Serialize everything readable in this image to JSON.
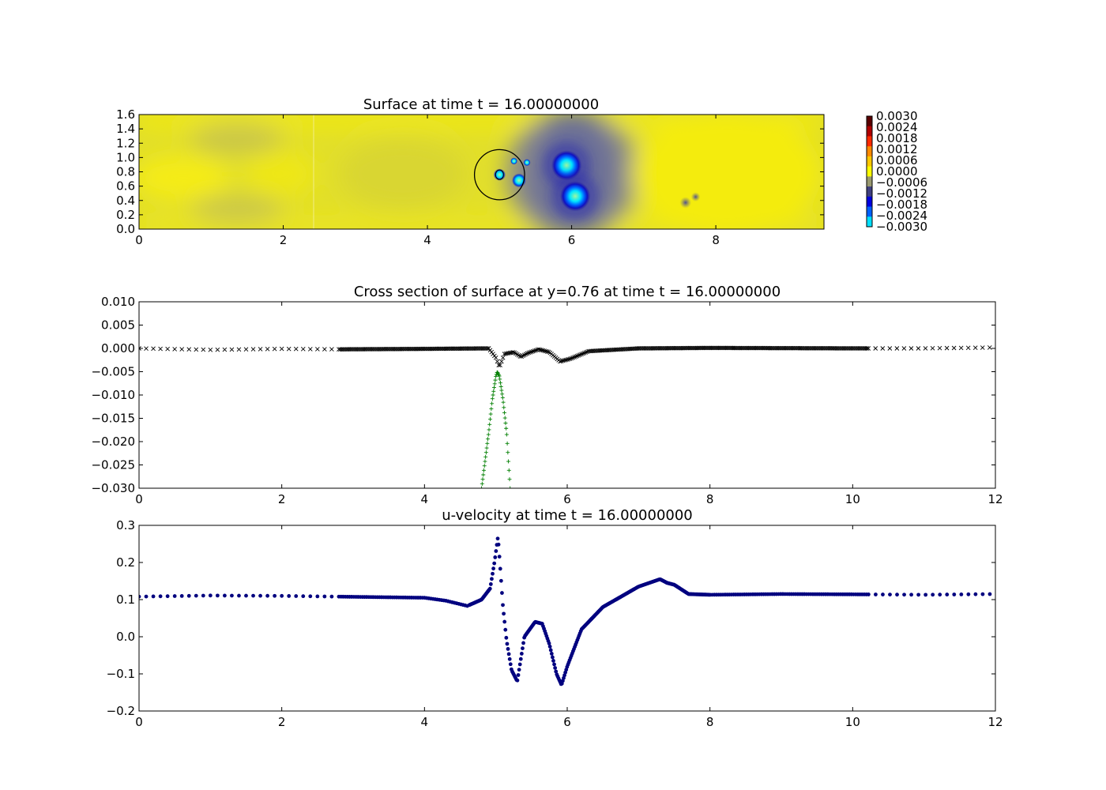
{
  "chart_data": [
    {
      "type": "heatmap",
      "title": "Surface at time t =    16.00000000",
      "xlim": [
        0,
        9.5
      ],
      "ylim": [
        0,
        1.6
      ],
      "xticks": [
        "0",
        "2",
        "4",
        "6",
        "8"
      ],
      "yticks": [
        "0.0",
        "0.2",
        "0.4",
        "0.6",
        "0.8",
        "1.0",
        "1.2",
        "1.4",
        "1.6"
      ],
      "colorbar": {
        "range": [
          -0.003,
          0.003
        ],
        "ticks": [
          "0.0030",
          "0.0024",
          "0.0018",
          "0.0012",
          "0.0006",
          "0.0000",
          "−0.0006",
          "−0.0012",
          "−0.0018",
          "−0.0024",
          "−0.0030"
        ],
        "colors": [
          "#5a0000",
          "#b00000",
          "#ff2a00",
          "#ff8a00",
          "#ffc800",
          "#ffff00",
          "#9a9a70",
          "#404080",
          "#0000e0",
          "#0060ff",
          "#00e0ff"
        ]
      },
      "features": {
        "circle": {
          "cx": 5.0,
          "cy": 0.76,
          "r": 0.35
        },
        "depressions": [
          {
            "x": 5.0,
            "y": 0.76,
            "r": 0.06
          },
          {
            "x": 5.27,
            "y": 0.68,
            "r": 0.07
          },
          {
            "x": 5.2,
            "y": 0.95,
            "r": 0.035
          },
          {
            "x": 5.38,
            "y": 0.93,
            "r": 0.035
          },
          {
            "x": 5.93,
            "y": 0.89,
            "r": 0.15
          },
          {
            "x": 6.05,
            "y": 0.46,
            "r": 0.15
          },
          {
            "x": 7.58,
            "y": 0.37,
            "r": 0.05
          },
          {
            "x": 7.72,
            "y": 0.45,
            "r": 0.04
          }
        ]
      }
    },
    {
      "type": "scatter",
      "title": "Cross section of surface at y=0.76 at time t =    16.00000000",
      "xlim": [
        0,
        12
      ],
      "ylim": [
        -0.03,
        0.01
      ],
      "xticks": [
        "0",
        "2",
        "4",
        "6",
        "8",
        "10",
        "12"
      ],
      "yticks": [
        "0.010",
        "0.005",
        "0.000",
        "−0.005",
        "−0.010",
        "−0.015",
        "−0.020",
        "−0.025",
        "−0.030"
      ],
      "series": [
        {
          "marker": "x",
          "color": "#000000",
          "points": [
            [
              0,
              0.0
            ],
            [
              1,
              -0.0003
            ],
            [
              2,
              -0.0001
            ],
            [
              2.8,
              -0.0002
            ],
            [
              4.0,
              -0.0001
            ],
            [
              4.9,
              0.0
            ],
            [
              5.0,
              -0.002
            ],
            [
              5.05,
              -0.004
            ],
            [
              5.12,
              -0.0012
            ],
            [
              5.25,
              -0.0008
            ],
            [
              5.35,
              -0.0018
            ],
            [
              5.45,
              -0.001
            ],
            [
              5.6,
              -0.0002
            ],
            [
              5.75,
              -0.0008
            ],
            [
              5.9,
              -0.0028
            ],
            [
              6.05,
              -0.0022
            ],
            [
              6.3,
              -0.0006
            ],
            [
              7.0,
              0.0
            ],
            [
              8.0,
              0.0001
            ],
            [
              10.2,
              0.0
            ],
            [
              11.0,
              0.0
            ],
            [
              12.0,
              0.0002
            ]
          ]
        },
        {
          "marker": "+",
          "color": "#007f00",
          "points": [
            [
              4.8,
              -0.03
            ],
            [
              4.9,
              -0.018
            ],
            [
              4.95,
              -0.011
            ],
            [
              5.0,
              -0.006
            ],
            [
              5.02,
              -0.005
            ],
            [
              5.05,
              -0.006
            ],
            [
              5.1,
              -0.011
            ],
            [
              5.15,
              -0.018
            ],
            [
              5.2,
              -0.03
            ]
          ]
        }
      ]
    },
    {
      "type": "scatter",
      "title": "u-velocity at time t =    16.00000000",
      "xlim": [
        0,
        12
      ],
      "ylim": [
        -0.2,
        0.3
      ],
      "xticks": [
        "0",
        "2",
        "4",
        "6",
        "8",
        "10",
        "12"
      ],
      "yticks": [
        "0.3",
        "0.2",
        "0.1",
        "0.0",
        "−0.1",
        "−0.2"
      ],
      "series": [
        {
          "marker": "o",
          "color": "#00007f",
          "points": [
            [
              0,
              0.108
            ],
            [
              1,
              0.111
            ],
            [
              2,
              0.11
            ],
            [
              2.8,
              0.108
            ],
            [
              4.0,
              0.105
            ],
            [
              4.3,
              0.097
            ],
            [
              4.6,
              0.083
            ],
            [
              4.8,
              0.1
            ],
            [
              4.92,
              0.13
            ],
            [
              4.98,
              0.2
            ],
            [
              5.03,
              0.27
            ],
            [
              5.1,
              0.08
            ],
            [
              5.15,
              -0.01
            ],
            [
              5.22,
              -0.09
            ],
            [
              5.3,
              -0.12
            ],
            [
              5.4,
              0.0
            ],
            [
              5.55,
              0.04
            ],
            [
              5.65,
              0.035
            ],
            [
              5.75,
              -0.02
            ],
            [
              5.85,
              -0.1
            ],
            [
              5.92,
              -0.13
            ],
            [
              6.0,
              -0.08
            ],
            [
              6.2,
              0.02
            ],
            [
              6.5,
              0.08
            ],
            [
              7.0,
              0.135
            ],
            [
              7.3,
              0.155
            ],
            [
              7.4,
              0.145
            ],
            [
              7.5,
              0.14
            ],
            [
              7.7,
              0.115
            ],
            [
              8.0,
              0.113
            ],
            [
              9.0,
              0.115
            ],
            [
              10.2,
              0.114
            ],
            [
              11.0,
              0.113
            ],
            [
              12.0,
              0.115
            ]
          ]
        }
      ]
    }
  ]
}
